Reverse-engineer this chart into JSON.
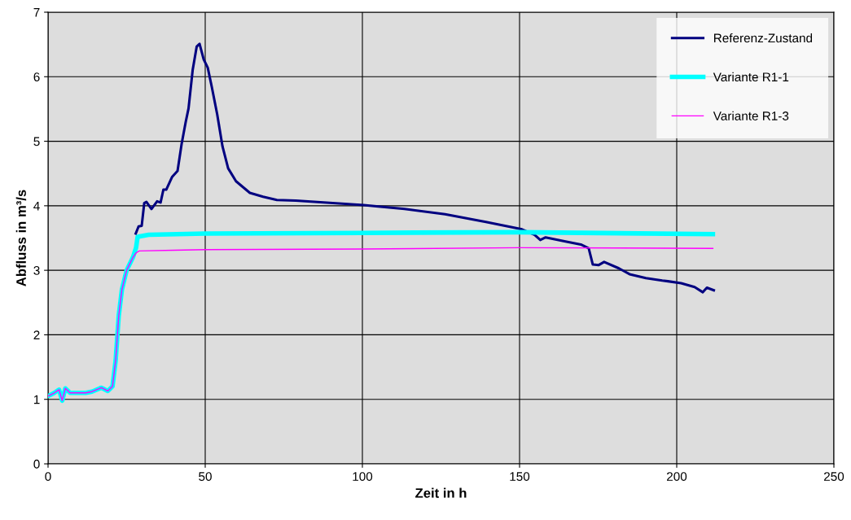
{
  "chart_data": {
    "type": "line",
    "xlabel": "Zeit in h",
    "ylabel": "Abfluss in m³/s",
    "xlim": [
      0,
      250
    ],
    "xticks": [
      0,
      50,
      100,
      150,
      200,
      250
    ],
    "ylim": [
      0,
      7
    ],
    "yticks": [
      0,
      1,
      2,
      3,
      4,
      5,
      6,
      7
    ],
    "grid": true,
    "legend": "top right",
    "marker": "none",
    "line_style": "solid",
    "series": [
      {
        "name": "Referenz-Zustand",
        "color": "#000080",
        "x": [
          27.9,
          28.8,
          29.8,
          30.6,
          31.3,
          32.9,
          34.7,
          35.8,
          36.7,
          37.6,
          39.5,
          41.2,
          42.5,
          43.8,
          44.7,
          46,
          47.3,
          48.2,
          49.5,
          50.8,
          52.1,
          53.8,
          55.5,
          57.3,
          59.8,
          64.2,
          68.4,
          72.8,
          78.8,
          100.4,
          113.4,
          126.3,
          139.3,
          150.5,
          154.8,
          156.6,
          158.3,
          164.3,
          169.5,
          172,
          173.3,
          175.1,
          176.9,
          181.6,
          185,
          190.2,
          195.4,
          197.2,
          201.4,
          205.7,
          208.3,
          209.6,
          211.8
        ],
        "values": [
          3.57,
          3.68,
          3.69,
          4.04,
          4.06,
          3.95,
          4.07,
          4.05,
          4.25,
          4.25,
          4.45,
          4.54,
          4.96,
          5.3,
          5.51,
          6.1,
          6.47,
          6.51,
          6.27,
          6.14,
          5.84,
          5.42,
          4.92,
          4.58,
          4.38,
          4.2,
          4.14,
          4.09,
          4.08,
          4.01,
          3.95,
          3.87,
          3.75,
          3.64,
          3.55,
          3.47,
          3.51,
          3.45,
          3.4,
          3.34,
          3.09,
          3.08,
          3.13,
          3.03,
          2.94,
          2.88,
          2.84,
          2.83,
          2.8,
          2.74,
          2.66,
          2.73,
          2.69
        ]
      },
      {
        "name": "Variante R1-1",
        "color": "#00ffff",
        "x": [
          0,
          2,
          3.5,
          4.5,
          5.5,
          7,
          12,
          14,
          17,
          19,
          20.5,
          21.5,
          22.5,
          23.5,
          25,
          27,
          28,
          28.5,
          32,
          50,
          100,
          150,
          211.5
        ],
        "values": [
          1.05,
          1.1,
          1.15,
          0.98,
          1.17,
          1.1,
          1.1,
          1.12,
          1.18,
          1.13,
          1.2,
          1.6,
          2.3,
          2.7,
          3.0,
          3.2,
          3.35,
          3.52,
          3.55,
          3.57,
          3.58,
          3.59,
          3.56
        ]
      },
      {
        "name": "Variante R1-3",
        "color": "#ff00ff",
        "x": [
          0,
          2,
          3.5,
          4.5,
          5.5,
          7,
          12,
          14,
          17,
          19,
          20.5,
          21.5,
          22.5,
          23.5,
          25,
          27,
          28,
          29,
          40,
          50,
          100,
          150,
          211.5
        ],
        "values": [
          1.05,
          1.1,
          1.15,
          0.98,
          1.17,
          1.1,
          1.1,
          1.12,
          1.18,
          1.13,
          1.2,
          1.6,
          2.3,
          2.7,
          3.0,
          3.2,
          3.27,
          3.3,
          3.31,
          3.32,
          3.33,
          3.35,
          3.34
        ]
      }
    ]
  }
}
